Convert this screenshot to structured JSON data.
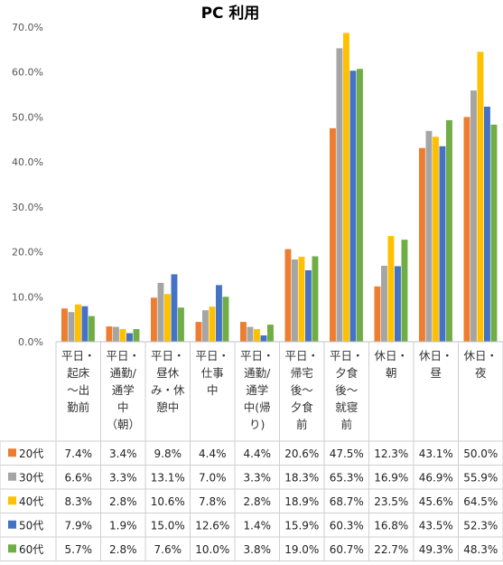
{
  "chart_data": {
    "type": "bar",
    "title": "PC 利用",
    "ylim": [
      0,
      70
    ],
    "yticks": [
      "0.0%",
      "10.0%",
      "20.0%",
      "30.0%",
      "40.0%",
      "50.0%",
      "60.0%",
      "70.0%"
    ],
    "grid": false,
    "legend": "data-table",
    "categories": [
      "平日・起床〜出勤前",
      "平日・通勤/通学中（朝）",
      "平日・昼休み・休憩中",
      "平日・仕事中",
      "平日・通勤/通学中(帰り)",
      "平日・帰宅後〜夕食前",
      "平日・夕食後〜就寝前",
      "休日・朝",
      "休日・昼",
      "休日・夜"
    ],
    "category_lines": [
      [
        "平日・",
        "起床",
        "〜出",
        "勤前"
      ],
      [
        "平日・",
        "通勤/",
        "通学",
        "中",
        "（朝）"
      ],
      [
        "平日・",
        "昼休",
        "み・休",
        "憩中"
      ],
      [
        "平日・",
        "仕事",
        "中"
      ],
      [
        "平日・",
        "通勤/",
        "通学",
        "中(帰",
        "り)"
      ],
      [
        "平日・",
        "帰宅",
        "後〜",
        "夕食",
        "前"
      ],
      [
        "平日・",
        "夕食",
        "後〜",
        "就寝",
        "前"
      ],
      [
        "休日・",
        "朝"
      ],
      [
        "休日・",
        "昼"
      ],
      [
        "休日・",
        "夜"
      ]
    ],
    "series": [
      {
        "name": "20代",
        "color": "#ED7D31",
        "values": [
          7.4,
          3.4,
          9.8,
          4.4,
          4.4,
          20.6,
          47.5,
          12.3,
          43.1,
          50.0
        ],
        "labels": [
          "7.4%",
          "3.4%",
          "9.8%",
          "4.4%",
          "4.4%",
          "20.6%",
          "47.5%",
          "12.3%",
          "43.1%",
          "50.0%"
        ]
      },
      {
        "name": "30代",
        "color": "#A5A5A5",
        "values": [
          6.6,
          3.3,
          13.1,
          7.0,
          3.3,
          18.3,
          65.3,
          16.9,
          46.9,
          55.9
        ],
        "labels": [
          "6.6%",
          "3.3%",
          "13.1%",
          "7.0%",
          "3.3%",
          "18.3%",
          "65.3%",
          "16.9%",
          "46.9%",
          "55.9%"
        ]
      },
      {
        "name": "40代",
        "color": "#FFC000",
        "values": [
          8.3,
          2.8,
          10.6,
          7.8,
          2.8,
          18.9,
          68.7,
          23.5,
          45.6,
          64.5
        ],
        "labels": [
          "8.3%",
          "2.8%",
          "10.6%",
          "7.8%",
          "2.8%",
          "18.9%",
          "68.7%",
          "23.5%",
          "45.6%",
          "64.5%"
        ]
      },
      {
        "name": "50代",
        "color": "#4472C4",
        "values": [
          7.9,
          1.9,
          15.0,
          12.6,
          1.4,
          15.9,
          60.3,
          16.8,
          43.5,
          52.3
        ],
        "labels": [
          "7.9%",
          "1.9%",
          "15.0%",
          "12.6%",
          "1.4%",
          "15.9%",
          "60.3%",
          "16.8%",
          "43.5%",
          "52.3%"
        ]
      },
      {
        "name": "60代",
        "color": "#70AD47",
        "values": [
          5.7,
          2.8,
          7.6,
          10.0,
          3.8,
          19.0,
          60.7,
          22.7,
          49.3,
          48.3
        ],
        "labels": [
          "5.7%",
          "2.8%",
          "7.6%",
          "10.0%",
          "3.8%",
          "19.0%",
          "60.7%",
          "22.7%",
          "49.3%",
          "48.3%"
        ]
      }
    ]
  }
}
